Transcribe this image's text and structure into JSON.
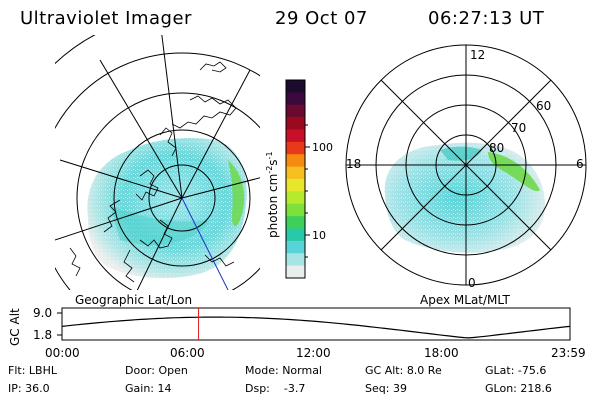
{
  "header": {
    "instrument": "Ultraviolet Imager",
    "date": "29 Oct 07",
    "time": "06:27:13 UT"
  },
  "colorbar": {
    "ticks": [
      "100",
      "10"
    ],
    "label": "photon cm",
    "label_exp1": "-2",
    "label_mid": "s",
    "label_exp2": "-1",
    "colors": [
      "#1b0b2e",
      "#3a0a3e",
      "#6a0a2e",
      "#9a0a1e",
      "#c8102a",
      "#e83a1a",
      "#f58a10",
      "#f6c020",
      "#e6e62a",
      "#b6ea2c",
      "#7ee03a",
      "#3ed05a",
      "#28c8a8",
      "#58d4d8",
      "#a8e4e6",
      "#e8eeee"
    ]
  },
  "left_map": {
    "label": "Geographic Lat/Lon"
  },
  "right_map": {
    "label": "Apex MLat/MLT",
    "mlt_labels": [
      "12",
      "18",
      "6",
      "0"
    ],
    "lat_labels": [
      "60",
      "70",
      "80"
    ]
  },
  "altitude_strip": {
    "ylabel": "GC Alt",
    "yticks": [
      "9.0",
      "1.8"
    ],
    "xticks": [
      "00:00",
      "06:00",
      "12:00",
      "18:00",
      "23:59"
    ],
    "marker_time_hours": 6.45
  },
  "status": {
    "row1": [
      {
        "label": "Flt:",
        "value": "LBHL"
      },
      {
        "label": "Door:",
        "value": "Open"
      },
      {
        "label": "Mode:",
        "value": "Normal"
      },
      {
        "label": "GC Alt:",
        "value": "8.0 Re"
      },
      {
        "label": "GLat:",
        "value": "-75.6"
      }
    ],
    "row2": [
      {
        "label": "IP:",
        "value": "36.0"
      },
      {
        "label": "Gain:",
        "value": "14"
      },
      {
        "label": "Dsp:",
        "value": "-3.7"
      },
      {
        "label": "Seq:",
        "value": "39"
      },
      {
        "label": "GLon:",
        "value": "218.6"
      }
    ]
  }
}
